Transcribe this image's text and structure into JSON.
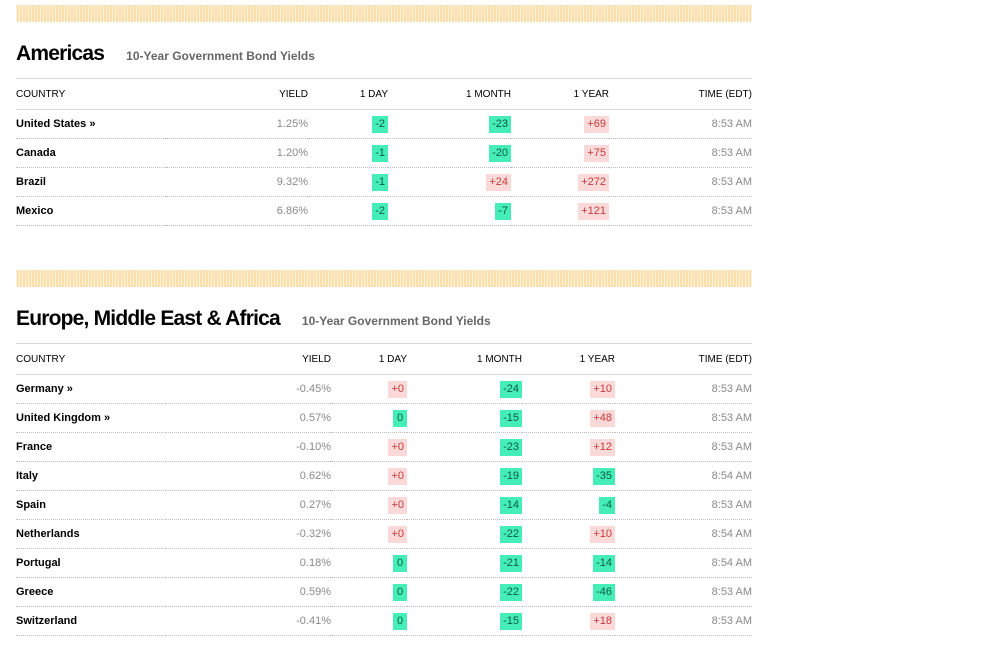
{
  "americas": {
    "title": "Americas",
    "subtitle": "10-Year Government Bond Yields",
    "headers": {
      "country": "COUNTRY",
      "yield": "YIELD",
      "day": "1 DAY",
      "month": "1 MONTH",
      "year": "1 YEAR",
      "time": "TIME (EDT)"
    },
    "rows": [
      {
        "country": "United States »",
        "yield": "1.25%",
        "day": "-2",
        "month": "-23",
        "year": "+69",
        "time": "8:53 AM"
      },
      {
        "country": "Canada",
        "yield": "1.20%",
        "day": "-1",
        "month": "-20",
        "year": "+75",
        "time": "8:53 AM"
      },
      {
        "country": "Brazil",
        "yield": "9.32%",
        "day": "-1",
        "month": "+24",
        "year": "+272",
        "time": "8:53 AM"
      },
      {
        "country": "Mexico",
        "yield": "6.86%",
        "day": "-2",
        "month": "-7",
        "year": "+121",
        "time": "8:53 AM"
      }
    ]
  },
  "emea": {
    "title": "Europe, Middle East & Africa",
    "subtitle": "10-Year Government Bond Yields",
    "headers": {
      "country": "COUNTRY",
      "yield": "YIELD",
      "day": "1 DAY",
      "month": "1 MONTH",
      "year": "1 YEAR",
      "time": "TIME (EDT)"
    },
    "rows": [
      {
        "country": "Germany »",
        "yield": "-0.45%",
        "day": "+0",
        "month": "-24",
        "year": "+10",
        "time": "8:53 AM"
      },
      {
        "country": "United Kingdom »",
        "yield": "0.57%",
        "day": "0",
        "month": "-15",
        "year": "+48",
        "time": "8:53 AM"
      },
      {
        "country": "France",
        "yield": "-0.10%",
        "day": "+0",
        "month": "-23",
        "year": "+12",
        "time": "8:53 AM"
      },
      {
        "country": "Italy",
        "yield": "0.62%",
        "day": "+0",
        "month": "-19",
        "year": "-35",
        "time": "8:54 AM"
      },
      {
        "country": "Spain",
        "yield": "0.27%",
        "day": "+0",
        "month": "-14",
        "year": "-4",
        "time": "8:53 AM"
      },
      {
        "country": "Netherlands",
        "yield": "-0.32%",
        "day": "+0",
        "month": "-22",
        "year": "+10",
        "time": "8:54 AM"
      },
      {
        "country": "Portugal",
        "yield": "0.18%",
        "day": "0",
        "month": "-21",
        "year": "-14",
        "time": "8:54 AM"
      },
      {
        "country": "Greece",
        "yield": "0.59%",
        "day": "0",
        "month": "-22",
        "year": "-46",
        "time": "8:53 AM"
      },
      {
        "country": "Switzerland",
        "yield": "-0.41%",
        "day": "0",
        "month": "-15",
        "year": "+18",
        "time": "8:53 AM"
      }
    ]
  },
  "colors": {
    "stripe": "#fbe0ad",
    "positive_bg": "#fcd9d9",
    "negative_bg": "#44eeb6"
  }
}
